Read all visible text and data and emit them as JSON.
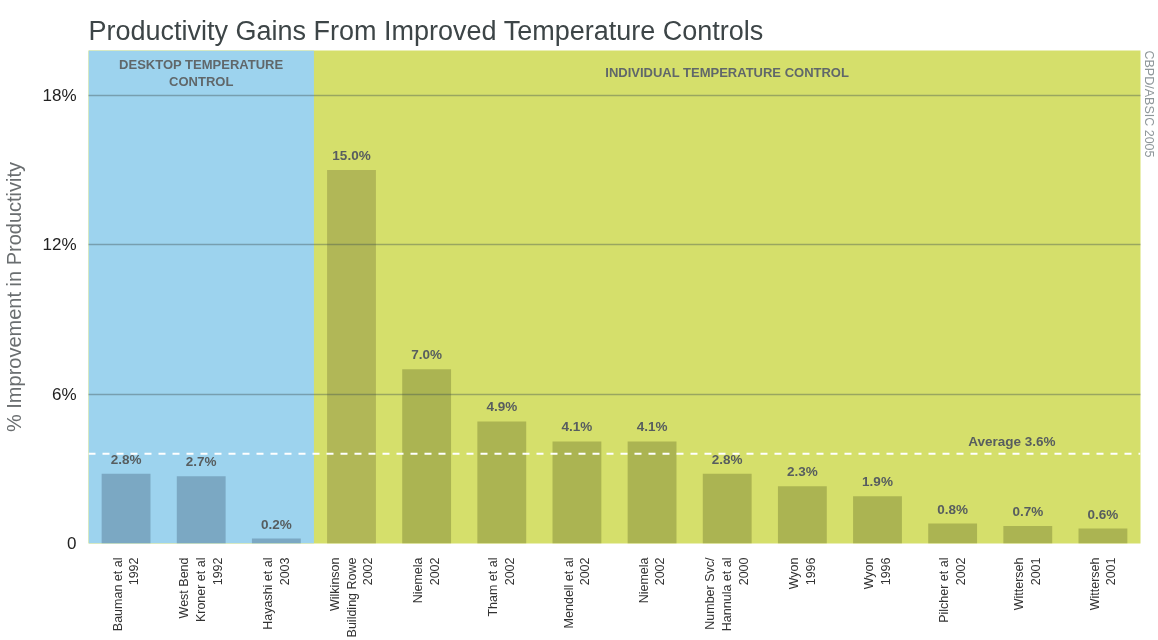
{
  "chart_data": {
    "type": "bar",
    "title": "Productivity Gains From Improved Temperature Controls",
    "ylabel": "% Improvement in Productivity",
    "categories": [
      "Bauman et al\n1992",
      "West Bend\nKroner et al\n1992",
      "Hayashi et al\n2003",
      "Wilkinson\nBuilding Rowe\n2002",
      "Niemela\n2002",
      "Tham et al\n2002",
      "Mendell et al\n2002",
      "Niemela\n2002",
      "Number Svc/\nHannula et al\n2000",
      "Wyon\n1996",
      "Wyon\n1996",
      "Pilcher et al\n2002",
      "Witterseh\n2001",
      "Witterseh\n2001"
    ],
    "values": [
      2.8,
      2.7,
      0.2,
      15.0,
      7.0,
      4.9,
      4.1,
      4.1,
      2.8,
      2.3,
      1.9,
      0.8,
      0.7,
      0.6
    ],
    "colors": [
      "#7ba8c3",
      "#7ba8c3",
      "#7ba8c3",
      "#b1b757",
      "#abb452",
      "#abb452",
      "#abb452",
      "#abb452",
      "#abb452",
      "#abb452",
      "#abb452",
      "#abb452",
      "#abb452",
      "#abb452"
    ],
    "value_labels": [
      "2.8%",
      "2.7%",
      "0.2%",
      "15.0%",
      "7.0%",
      "4.9%",
      "4.1%",
      "4.1%",
      "2.8%",
      "2.3%",
      "1.9%",
      "0.8%",
      "0.7%",
      "0.6%"
    ],
    "ylim": [
      0,
      19.8
    ],
    "yticks": [
      0,
      {
        "value": 6,
        "label": "6%"
      },
      {
        "value": 12,
        "label": "12%"
      },
      {
        "value": 18,
        "label": "18%"
      }
    ],
    "grid": "y",
    "bands": [
      {
        "axis": "x",
        "from": "Bauman et al\n1992",
        "to": "Hayashi et al\n2003",
        "label": "DESKTOP TEMPERATURE\nCONTROL",
        "color": "#9dd3ee"
      }
    ],
    "ref_lines": [
      {
        "axis": "y",
        "value": 3.6,
        "label": "Average 3.6%",
        "color": "#ffffff",
        "line_style": "dashed"
      }
    ],
    "annotations": [
      "INDIVIDUAL TEMPERATURE CONTROL",
      "CBPD/ABSIC 2005"
    ]
  }
}
